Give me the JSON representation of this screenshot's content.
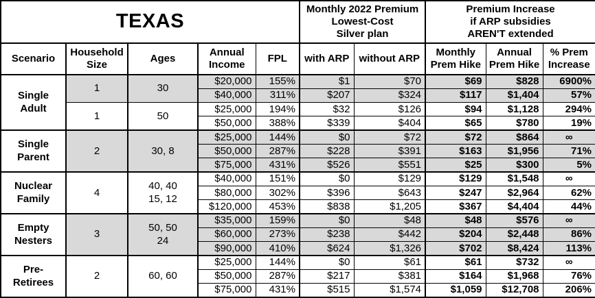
{
  "header": {
    "region_title": "TEXAS",
    "premium_block_title": "Monthly 2022 Premium\nLowest-Cost\nSilver plan",
    "increase_block_title": "Premium Increase\nif ARP subsidies\nAREN'T extended"
  },
  "columns": [
    "Scenario",
    "Household\nSize",
    "Ages",
    "Annual\nIncome",
    "FPL",
    "with ARP",
    "without ARP",
    "Monthly\nPrem Hike",
    "Annual\nPrem Hike",
    "% Prem\nIncrease"
  ],
  "style": {
    "shade_color": "#d9d9d9",
    "border_color": "#000000"
  },
  "groups": [
    {
      "scenario": "Single\nAdult",
      "subgroups": [
        {
          "household_size": "1",
          "ages": "30",
          "shaded": true,
          "rows": [
            {
              "income": "$20,000",
              "fpl": "155%",
              "with_arp": "$1",
              "without_arp": "$70",
              "monthly_hike": "$69",
              "annual_hike": "$828",
              "pct_increase": "6900%"
            },
            {
              "income": "$40,000",
              "fpl": "311%",
              "with_arp": "$207",
              "without_arp": "$324",
              "monthly_hike": "$117",
              "annual_hike": "$1,404",
              "pct_increase": "57%"
            }
          ]
        },
        {
          "household_size": "1",
          "ages": "50",
          "shaded": false,
          "rows": [
            {
              "income": "$25,000",
              "fpl": "194%",
              "with_arp": "$32",
              "without_arp": "$126",
              "monthly_hike": "$94",
              "annual_hike": "$1,128",
              "pct_increase": "294%"
            },
            {
              "income": "$50,000",
              "fpl": "388%",
              "with_arp": "$339",
              "without_arp": "$404",
              "monthly_hike": "$65",
              "annual_hike": "$780",
              "pct_increase": "19%"
            }
          ]
        }
      ]
    },
    {
      "scenario": "Single\nParent",
      "subgroups": [
        {
          "household_size": "2",
          "ages": "30, 8",
          "shaded": true,
          "rows": [
            {
              "income": "$25,000",
              "fpl": "144%",
              "with_arp": "$0",
              "without_arp": "$72",
              "monthly_hike": "$72",
              "annual_hike": "$864",
              "pct_increase": "∞"
            },
            {
              "income": "$50,000",
              "fpl": "287%",
              "with_arp": "$228",
              "without_arp": "$391",
              "monthly_hike": "$163",
              "annual_hike": "$1,956",
              "pct_increase": "71%"
            },
            {
              "income": "$75,000",
              "fpl": "431%",
              "with_arp": "$526",
              "without_arp": "$551",
              "monthly_hike": "$25",
              "annual_hike": "$300",
              "pct_increase": "5%"
            }
          ]
        }
      ]
    },
    {
      "scenario": "Nuclear\nFamily",
      "subgroups": [
        {
          "household_size": "4",
          "ages": "40, 40\n15, 12",
          "shaded": false,
          "rows": [
            {
              "income": "$40,000",
              "fpl": "151%",
              "with_arp": "$0",
              "without_arp": "$129",
              "monthly_hike": "$129",
              "annual_hike": "$1,548",
              "pct_increase": "∞"
            },
            {
              "income": "$80,000",
              "fpl": "302%",
              "with_arp": "$396",
              "without_arp": "$643",
              "monthly_hike": "$247",
              "annual_hike": "$2,964",
              "pct_increase": "62%"
            },
            {
              "income": "$120,000",
              "fpl": "453%",
              "with_arp": "$838",
              "without_arp": "$1,205",
              "monthly_hike": "$367",
              "annual_hike": "$4,404",
              "pct_increase": "44%"
            }
          ]
        }
      ]
    },
    {
      "scenario": "Empty\nNesters",
      "subgroups": [
        {
          "household_size": "3",
          "ages": "50, 50\n24",
          "shaded": true,
          "rows": [
            {
              "income": "$35,000",
              "fpl": "159%",
              "with_arp": "$0",
              "without_arp": "$48",
              "monthly_hike": "$48",
              "annual_hike": "$576",
              "pct_increase": "∞"
            },
            {
              "income": "$60,000",
              "fpl": "273%",
              "with_arp": "$238",
              "without_arp": "$442",
              "monthly_hike": "$204",
              "annual_hike": "$2,448",
              "pct_increase": "86%"
            },
            {
              "income": "$90,000",
              "fpl": "410%",
              "with_arp": "$624",
              "without_arp": "$1,326",
              "monthly_hike": "$702",
              "annual_hike": "$8,424",
              "pct_increase": "113%"
            }
          ]
        }
      ]
    },
    {
      "scenario": "Pre-\nRetirees",
      "subgroups": [
        {
          "household_size": "2",
          "ages": "60, 60",
          "shaded": false,
          "rows": [
            {
              "income": "$25,000",
              "fpl": "144%",
              "with_arp": "$0",
              "without_arp": "$61",
              "monthly_hike": "$61",
              "annual_hike": "$732",
              "pct_increase": "∞"
            },
            {
              "income": "$50,000",
              "fpl": "287%",
              "with_arp": "$217",
              "without_arp": "$381",
              "monthly_hike": "$164",
              "annual_hike": "$1,968",
              "pct_increase": "76%"
            },
            {
              "income": "$75,000",
              "fpl": "431%",
              "with_arp": "$515",
              "without_arp": "$1,574",
              "monthly_hike": "$1,059",
              "annual_hike": "$12,708",
              "pct_increase": "206%"
            }
          ]
        }
      ]
    }
  ]
}
